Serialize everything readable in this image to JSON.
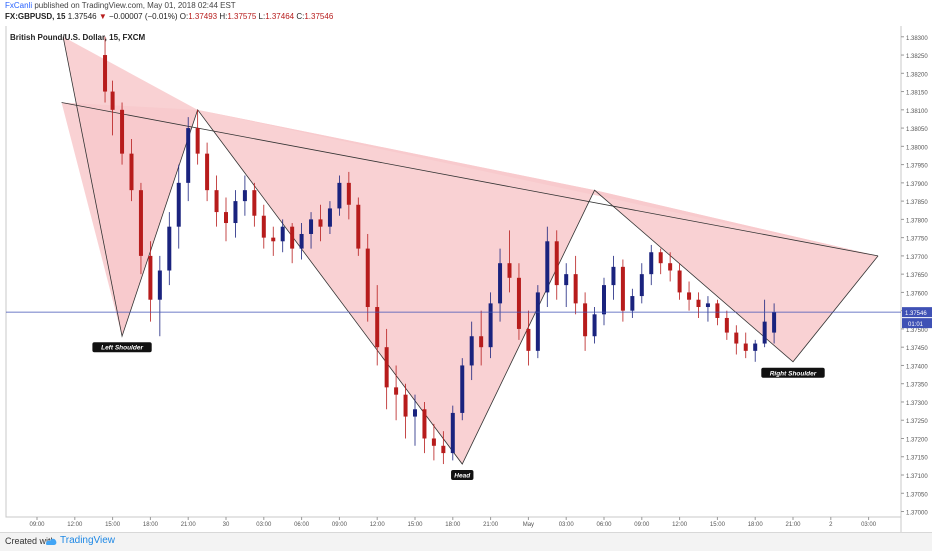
{
  "header": {
    "author": "FxCanli",
    "published": "published on TradingView.com, May 01, 2018 02:44 EST",
    "symbol": "FX:GBPUSD, 15",
    "last": "1.37546",
    "change": "−0.00007 (−0.01%)",
    "o_label": "O:",
    "o_val": "1.37493",
    "h_label": "H:",
    "h_val": "1.37575",
    "l_label": "L:",
    "l_val": "1.37464",
    "c_label": "C:",
    "c_val": "1.37546"
  },
  "footer": {
    "created_with": "Created with",
    "brand": "TradingView"
  },
  "colors": {
    "up": "#1a237e",
    "down": "#b71c1c",
    "pattern_fill": "#f8c9cb",
    "price_line": "#3f51b5"
  },
  "chart_data": {
    "type": "candlestick",
    "title": "British Pound/U.S. Dollar, 15, FXCM",
    "price_axis": {
      "ticks": [
        1.383,
        1.3825,
        1.382,
        1.3815,
        1.381,
        1.3805,
        1.38,
        1.3795,
        1.379,
        1.3785,
        1.378,
        1.3775,
        1.377,
        1.3765,
        1.376,
        1.3755,
        1.375,
        1.3745,
        1.374,
        1.3735,
        1.373,
        1.3725,
        1.372,
        1.3715,
        1.371,
        1.3705,
        1.37
      ],
      "decimals": 5,
      "ylim": [
        1.36985,
        1.38335
      ],
      "side": "right"
    },
    "time_axis": {
      "labels": [
        "09:00",
        "12:00",
        "15:00",
        "18:00",
        "21:00",
        "30",
        "03:00",
        "06:00",
        "09:00",
        "12:00",
        "15:00",
        "18:00",
        "21:00",
        "May",
        "03:00",
        "06:00",
        "09:00",
        "12:00",
        "15:00",
        "18:00",
        "21:00",
        "2",
        "03:00"
      ]
    },
    "current_price": "1.37546",
    "countdown": "01:01",
    "annotations": [
      "Left Shoulder",
      "Head",
      "Right Shoulder"
    ],
    "pattern_path": [
      [
        1.3815,
        1.383
      ],
      [
        4.5,
        1.3748
      ],
      [
        8.5,
        1.381
      ],
      [
        22.5,
        1.3713
      ],
      [
        29.5,
        1.3788
      ],
      [
        40,
        1.3741
      ],
      [
        44.5,
        1.377
      ]
    ],
    "neckline": [
      [
        1.3,
        1.3812
      ],
      [
        44.5,
        1.377
      ]
    ],
    "price_line_value": 1.37546,
    "candles": [
      {
        "t": 3.6,
        "o": 1.3825,
        "h": 1.383,
        "l": 1.3812,
        "c": 1.3815
      },
      {
        "t": 4.0,
        "o": 1.3815,
        "h": 1.3818,
        "l": 1.3803,
        "c": 1.381
      },
      {
        "t": 4.5,
        "o": 1.381,
        "h": 1.3812,
        "l": 1.3795,
        "c": 1.3798
      },
      {
        "t": 5.0,
        "o": 1.3798,
        "h": 1.3802,
        "l": 1.3785,
        "c": 1.3788
      },
      {
        "t": 5.5,
        "o": 1.3788,
        "h": 1.379,
        "l": 1.3765,
        "c": 1.377
      },
      {
        "t": 6.0,
        "o": 1.377,
        "h": 1.3774,
        "l": 1.3752,
        "c": 1.3758
      },
      {
        "t": 6.5,
        "o": 1.3758,
        "h": 1.377,
        "l": 1.3748,
        "c": 1.3766
      },
      {
        "t": 7.0,
        "o": 1.3766,
        "h": 1.3782,
        "l": 1.3762,
        "c": 1.3778
      },
      {
        "t": 7.5,
        "o": 1.3778,
        "h": 1.3795,
        "l": 1.3772,
        "c": 1.379
      },
      {
        "t": 8.0,
        "o": 1.379,
        "h": 1.3808,
        "l": 1.3785,
        "c": 1.3805
      },
      {
        "t": 8.5,
        "o": 1.3805,
        "h": 1.381,
        "l": 1.3795,
        "c": 1.3798
      },
      {
        "t": 9.0,
        "o": 1.3798,
        "h": 1.3801,
        "l": 1.3785,
        "c": 1.3788
      },
      {
        "t": 9.5,
        "o": 1.3788,
        "h": 1.3792,
        "l": 1.3778,
        "c": 1.3782
      },
      {
        "t": 10.0,
        "o": 1.3782,
        "h": 1.3786,
        "l": 1.3774,
        "c": 1.3779
      },
      {
        "t": 10.5,
        "o": 1.3779,
        "h": 1.3788,
        "l": 1.3775,
        "c": 1.3785
      },
      {
        "t": 11.0,
        "o": 1.3785,
        "h": 1.3792,
        "l": 1.3781,
        "c": 1.3788
      },
      {
        "t": 11.5,
        "o": 1.3788,
        "h": 1.379,
        "l": 1.3778,
        "c": 1.3781
      },
      {
        "t": 12.0,
        "o": 1.3781,
        "h": 1.3784,
        "l": 1.3772,
        "c": 1.3775
      },
      {
        "t": 12.5,
        "o": 1.3775,
        "h": 1.3778,
        "l": 1.377,
        "c": 1.3774
      },
      {
        "t": 13.0,
        "o": 1.3774,
        "h": 1.378,
        "l": 1.3771,
        "c": 1.3778
      },
      {
        "t": 13.5,
        "o": 1.3778,
        "h": 1.3779,
        "l": 1.3768,
        "c": 1.3772
      },
      {
        "t": 14.0,
        "o": 1.3772,
        "h": 1.3779,
        "l": 1.3769,
        "c": 1.3776
      },
      {
        "t": 14.5,
        "o": 1.3776,
        "h": 1.3782,
        "l": 1.3772,
        "c": 1.378
      },
      {
        "t": 15.0,
        "o": 1.378,
        "h": 1.3784,
        "l": 1.3774,
        "c": 1.3778
      },
      {
        "t": 15.5,
        "o": 1.3778,
        "h": 1.3785,
        "l": 1.3776,
        "c": 1.3783
      },
      {
        "t": 16.0,
        "o": 1.3783,
        "h": 1.3792,
        "l": 1.3781,
        "c": 1.379
      },
      {
        "t": 16.5,
        "o": 1.379,
        "h": 1.3793,
        "l": 1.378,
        "c": 1.3784
      },
      {
        "t": 17.0,
        "o": 1.3784,
        "h": 1.3786,
        "l": 1.377,
        "c": 1.3772
      },
      {
        "t": 17.5,
        "o": 1.3772,
        "h": 1.3776,
        "l": 1.3752,
        "c": 1.3756
      },
      {
        "t": 18.0,
        "o": 1.3756,
        "h": 1.3762,
        "l": 1.374,
        "c": 1.3745
      },
      {
        "t": 18.5,
        "o": 1.3745,
        "h": 1.375,
        "l": 1.3728,
        "c": 1.3734
      },
      {
        "t": 19.0,
        "o": 1.3734,
        "h": 1.374,
        "l": 1.3725,
        "c": 1.3732
      },
      {
        "t": 19.5,
        "o": 1.3732,
        "h": 1.3735,
        "l": 1.372,
        "c": 1.3726
      },
      {
        "t": 20.0,
        "o": 1.3726,
        "h": 1.3732,
        "l": 1.3718,
        "c": 1.3728
      },
      {
        "t": 20.5,
        "o": 1.3728,
        "h": 1.373,
        "l": 1.3716,
        "c": 1.372
      },
      {
        "t": 21.0,
        "o": 1.372,
        "h": 1.3724,
        "l": 1.3714,
        "c": 1.3718
      },
      {
        "t": 21.5,
        "o": 1.3718,
        "h": 1.3722,
        "l": 1.3713,
        "c": 1.3716
      },
      {
        "t": 22.0,
        "o": 1.3716,
        "h": 1.3729,
        "l": 1.3714,
        "c": 1.3727
      },
      {
        "t": 22.5,
        "o": 1.3727,
        "h": 1.3742,
        "l": 1.3725,
        "c": 1.374
      },
      {
        "t": 23.0,
        "o": 1.374,
        "h": 1.3752,
        "l": 1.3736,
        "c": 1.3748
      },
      {
        "t": 23.5,
        "o": 1.3748,
        "h": 1.3755,
        "l": 1.374,
        "c": 1.3745
      },
      {
        "t": 24.0,
        "o": 1.3745,
        "h": 1.376,
        "l": 1.3742,
        "c": 1.3757
      },
      {
        "t": 24.5,
        "o": 1.3757,
        "h": 1.3772,
        "l": 1.3752,
        "c": 1.3768
      },
      {
        "t": 25.0,
        "o": 1.3768,
        "h": 1.3777,
        "l": 1.376,
        "c": 1.3764
      },
      {
        "t": 25.5,
        "o": 1.3764,
        "h": 1.3768,
        "l": 1.3747,
        "c": 1.375
      },
      {
        "t": 26.0,
        "o": 1.375,
        "h": 1.3755,
        "l": 1.374,
        "c": 1.3744
      },
      {
        "t": 26.5,
        "o": 1.3744,
        "h": 1.3762,
        "l": 1.3742,
        "c": 1.376
      },
      {
        "t": 27.0,
        "o": 1.376,
        "h": 1.3778,
        "l": 1.3756,
        "c": 1.3774
      },
      {
        "t": 27.5,
        "o": 1.3774,
        "h": 1.3777,
        "l": 1.3758,
        "c": 1.3762
      },
      {
        "t": 28.0,
        "o": 1.3762,
        "h": 1.3768,
        "l": 1.3756,
        "c": 1.3765
      },
      {
        "t": 28.5,
        "o": 1.3765,
        "h": 1.377,
        "l": 1.3754,
        "c": 1.3757
      },
      {
        "t": 29.0,
        "o": 1.3757,
        "h": 1.376,
        "l": 1.3744,
        "c": 1.3748
      },
      {
        "t": 29.5,
        "o": 1.3748,
        "h": 1.3756,
        "l": 1.3746,
        "c": 1.3754
      },
      {
        "t": 30.0,
        "o": 1.3754,
        "h": 1.3764,
        "l": 1.3751,
        "c": 1.3762
      },
      {
        "t": 30.5,
        "o": 1.3762,
        "h": 1.377,
        "l": 1.3758,
        "c": 1.3767
      },
      {
        "t": 31.0,
        "o": 1.3767,
        "h": 1.3769,
        "l": 1.3752,
        "c": 1.3755
      },
      {
        "t": 31.5,
        "o": 1.3755,
        "h": 1.3761,
        "l": 1.3753,
        "c": 1.3759
      },
      {
        "t": 32.0,
        "o": 1.3759,
        "h": 1.3768,
        "l": 1.3757,
        "c": 1.3765
      },
      {
        "t": 32.5,
        "o": 1.3765,
        "h": 1.3773,
        "l": 1.3762,
        "c": 1.3771
      },
      {
        "t": 33.0,
        "o": 1.3771,
        "h": 1.3772,
        "l": 1.3765,
        "c": 1.3768
      },
      {
        "t": 33.5,
        "o": 1.3768,
        "h": 1.3771,
        "l": 1.3763,
        "c": 1.3766
      },
      {
        "t": 34.0,
        "o": 1.3766,
        "h": 1.3768,
        "l": 1.3758,
        "c": 1.376
      },
      {
        "t": 34.5,
        "o": 1.376,
        "h": 1.3763,
        "l": 1.3755,
        "c": 1.3758
      },
      {
        "t": 35.0,
        "o": 1.3758,
        "h": 1.376,
        "l": 1.3753,
        "c": 1.3756
      },
      {
        "t": 35.5,
        "o": 1.3756,
        "h": 1.3759,
        "l": 1.3752,
        "c": 1.3757
      },
      {
        "t": 36.0,
        "o": 1.3757,
        "h": 1.3758,
        "l": 1.3751,
        "c": 1.3753
      },
      {
        "t": 36.5,
        "o": 1.3753,
        "h": 1.3755,
        "l": 1.3747,
        "c": 1.3749
      },
      {
        "t": 37.0,
        "o": 1.3749,
        "h": 1.3751,
        "l": 1.3743,
        "c": 1.3746
      },
      {
        "t": 37.5,
        "o": 1.3746,
        "h": 1.3749,
        "l": 1.3742,
        "c": 1.3744
      },
      {
        "t": 38.0,
        "o": 1.3744,
        "h": 1.3747,
        "l": 1.3741,
        "c": 1.3746
      },
      {
        "t": 38.5,
        "o": 1.3746,
        "h": 1.3758,
        "l": 1.3745,
        "c": 1.3752
      },
      {
        "t": 39.0,
        "o": 1.3749,
        "h": 1.3757,
        "l": 1.3746,
        "c": 1.37546
      }
    ]
  }
}
